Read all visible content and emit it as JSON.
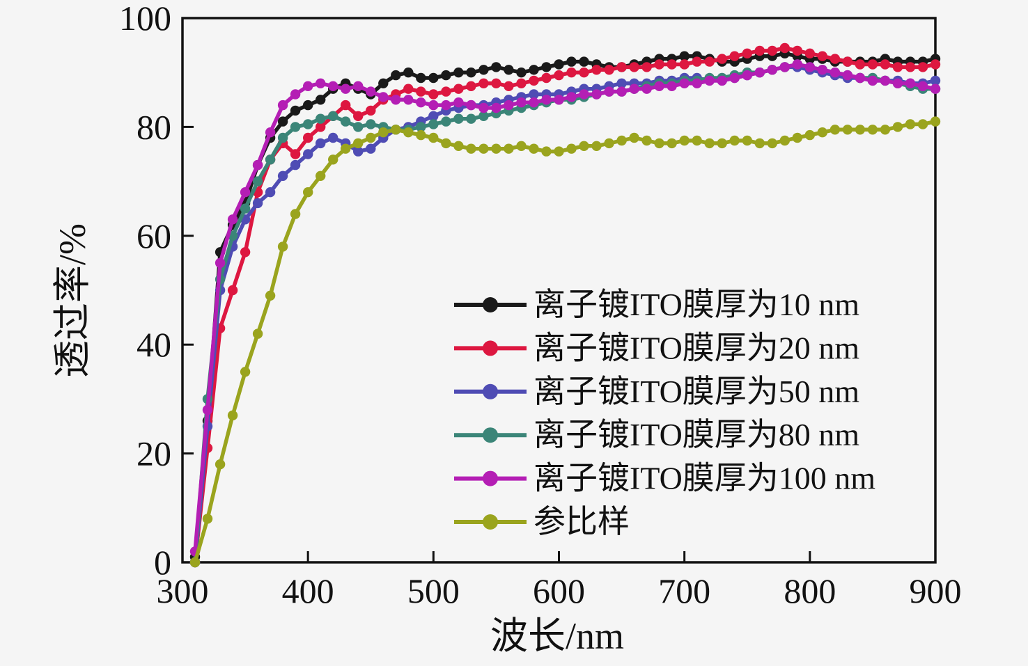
{
  "figure": {
    "background": "#f5f5f5",
    "frame_color": "#111111",
    "xlabel": "波长/nm",
    "ylabel": "透过率/%"
  },
  "chart_data": {
    "type": "line",
    "title": "",
    "xlabel": "波长/nm",
    "ylabel": "透过率/%",
    "xlim": [
      300,
      900
    ],
    "ylim": [
      0,
      100
    ],
    "xticks": [
      300,
      400,
      500,
      600,
      700,
      800,
      900
    ],
    "yticks": [
      0,
      20,
      40,
      60,
      80,
      100
    ],
    "grid": false,
    "legend_position": "inside-center-right",
    "marker": "circle",
    "x": [
      310,
      320,
      330,
      340,
      350,
      360,
      370,
      380,
      390,
      400,
      410,
      420,
      430,
      440,
      450,
      460,
      470,
      480,
      490,
      500,
      510,
      520,
      530,
      540,
      550,
      560,
      570,
      580,
      590,
      600,
      610,
      620,
      630,
      640,
      650,
      660,
      670,
      680,
      690,
      700,
      710,
      720,
      730,
      740,
      750,
      760,
      770,
      780,
      790,
      800,
      810,
      820,
      830,
      840,
      850,
      860,
      870,
      880,
      890,
      900
    ],
    "series": [
      {
        "name": "离子镀ITO膜厚为10 nm",
        "color": "#1a1a1a",
        "values": [
          1,
          26,
          57,
          62,
          66,
          73,
          78,
          81,
          83,
          84,
          85,
          87,
          88,
          87,
          86,
          88,
          89.5,
          90,
          89,
          89,
          89.5,
          90,
          90,
          90.5,
          91,
          90.5,
          90,
          90.5,
          91,
          91.5,
          92,
          92,
          91.5,
          91,
          91,
          91.5,
          92,
          92.5,
          92.5,
          93,
          93,
          92.5,
          92,
          92,
          92.5,
          93,
          93,
          93.5,
          93,
          92.5,
          92.5,
          92,
          92,
          92,
          92,
          92.5,
          92,
          92,
          92,
          92.5
        ]
      },
      {
        "name": "离子镀ITO膜厚为20 nm",
        "color": "#dd1740",
        "values": [
          0,
          21,
          43,
          50,
          57,
          68,
          74,
          77,
          75,
          78,
          80,
          82,
          84,
          82,
          83,
          85,
          86,
          87,
          86.5,
          86,
          86.5,
          87,
          87.5,
          88,
          88,
          87.5,
          88,
          88.5,
          89,
          89.5,
          90,
          90,
          90.5,
          90.5,
          91,
          91,
          91,
          91.5,
          91.5,
          91.5,
          92,
          92,
          92.5,
          93,
          93.5,
          94,
          94,
          94.5,
          94,
          93.5,
          93,
          92.5,
          92,
          91.5,
          91.5,
          91.5,
          91,
          91,
          91,
          91.5
        ]
      },
      {
        "name": "离子镀ITO膜厚为50 nm",
        "color": "#4f4cb4",
        "values": [
          0,
          25,
          50,
          58,
          63,
          66,
          68,
          71,
          73,
          75,
          77,
          78,
          77,
          75.5,
          76,
          78,
          79.5,
          80,
          81,
          82,
          83,
          83.5,
          84,
          84,
          84.5,
          85,
          85.5,
          86,
          86,
          86,
          86.5,
          87,
          87,
          87.5,
          88,
          88,
          88,
          88.5,
          88.5,
          89,
          89,
          88.5,
          88.5,
          89,
          89.5,
          90,
          90.5,
          91,
          91,
          90.5,
          90,
          89.5,
          89,
          89,
          88.5,
          88.5,
          88.5,
          88,
          88,
          88.5
        ]
      },
      {
        "name": "离子镀ITO膜厚为80 nm",
        "color": "#3b8578",
        "values": [
          0,
          30,
          52,
          60,
          65,
          70,
          74,
          78,
          80,
          80.5,
          81.5,
          82,
          81,
          80,
          80.5,
          80,
          79.5,
          79.5,
          80,
          80.5,
          81,
          81.5,
          81.5,
          82,
          82.5,
          83,
          83.5,
          84,
          84.5,
          85,
          85,
          85.5,
          86,
          86.5,
          86.5,
          87,
          87.5,
          88,
          88,
          88.5,
          88.5,
          89,
          89,
          89.5,
          90,
          90,
          90.5,
          91,
          91.5,
          91,
          90.5,
          90,
          89.5,
          89,
          89,
          88.5,
          88,
          87.5,
          87,
          87
        ]
      },
      {
        "name": "离子镀ITO膜厚为100 nm",
        "color": "#b41eb4",
        "values": [
          2,
          28,
          55,
          63,
          68,
          73,
          79,
          84,
          86,
          87.5,
          88,
          87.5,
          87,
          87.5,
          86.5,
          85.5,
          85,
          85,
          84.5,
          84,
          84,
          84.5,
          84,
          83.5,
          83.5,
          84,
          84.5,
          84.5,
          85,
          85,
          85.5,
          86,
          86,
          86.5,
          86.5,
          87,
          87,
          87.5,
          87.5,
          88,
          88,
          88.5,
          88.5,
          89,
          89.5,
          90,
          90.5,
          91,
          91.5,
          91,
          90.5,
          90,
          89.5,
          89,
          88.5,
          88.5,
          88,
          88,
          87.5,
          87
        ]
      },
      {
        "name": "参比样",
        "color": "#9aa41e",
        "values": [
          0,
          8,
          18,
          27,
          35,
          42,
          49,
          58,
          64,
          68,
          71,
          74,
          76,
          77,
          78,
          79,
          79.5,
          79,
          78.5,
          78,
          77,
          76.5,
          76,
          76,
          76,
          76,
          76.5,
          76,
          75.5,
          75.5,
          76,
          76.5,
          76.5,
          77,
          77.5,
          78,
          77.5,
          77,
          77,
          77.5,
          77.5,
          77,
          77,
          77.5,
          77.5,
          77,
          77,
          77.5,
          78,
          78.5,
          79,
          79.5,
          79.5,
          79.5,
          79.5,
          79.5,
          80,
          80.5,
          80.5,
          81
        ]
      }
    ]
  }
}
